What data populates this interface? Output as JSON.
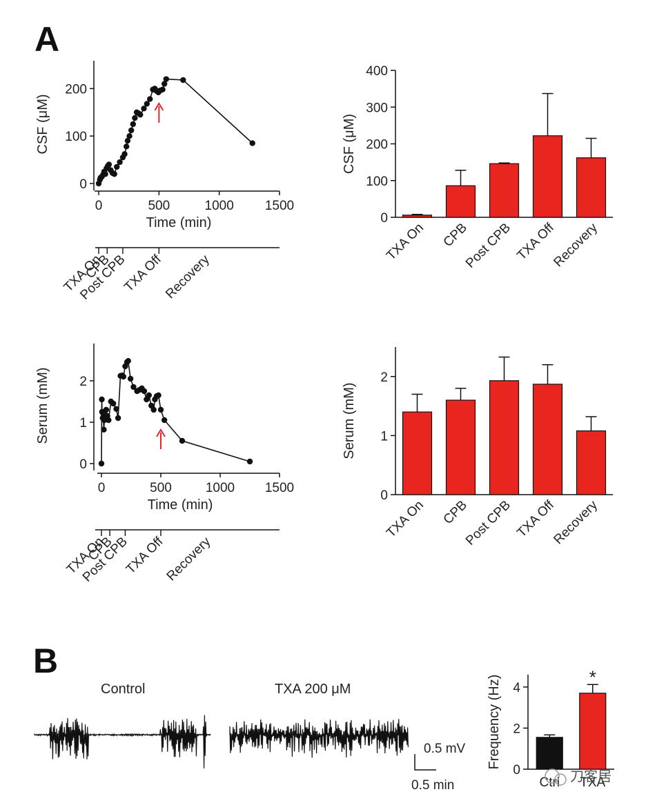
{
  "panel_labels": {
    "a": "A",
    "b": "B"
  },
  "colors": {
    "bar": "#e8251f",
    "bar_dark": "#111111",
    "arrow": "#e0282e",
    "line": "#111111"
  },
  "watermark": "刀客居",
  "chart_data": [
    {
      "id": "csf_time",
      "type": "line",
      "ylabel": "CSF (μM)",
      "xlabel": "Time (min)",
      "xlim": [
        0,
        1500
      ],
      "ylim": [
        0,
        250
      ],
      "xticks": [
        "0",
        "500",
        "1000",
        "1500"
      ],
      "yticks": [
        "0",
        "100",
        "200"
      ],
      "x": [
        0,
        10,
        15,
        25,
        35,
        45,
        55,
        65,
        75,
        85,
        100,
        115,
        130,
        150,
        175,
        200,
        215,
        230,
        240,
        255,
        270,
        285,
        300,
        315,
        330,
        345,
        375,
        400,
        425,
        450,
        465,
        480,
        495,
        510,
        530,
        545,
        560,
        700,
        1275
      ],
      "y": [
        0,
        8,
        12,
        14,
        18,
        25,
        20,
        32,
        37,
        40,
        28,
        22,
        20,
        35,
        45,
        55,
        62,
        78,
        90,
        100,
        112,
        125,
        138,
        150,
        148,
        145,
        158,
        168,
        178,
        198,
        200,
        195,
        192,
        196,
        198,
        210,
        220,
        218,
        85
      ],
      "arrow_x": 500,
      "phases": [
        "TXA On",
        "CPB",
        "Post CPB",
        "TXA Off",
        "Recovery"
      ],
      "phase_x": [
        0,
        70,
        200,
        500,
        900
      ]
    },
    {
      "id": "csf_bar",
      "type": "bar",
      "ylabel": "CSF (μM)",
      "ylim": [
        0,
        400
      ],
      "yticks": [
        "0",
        "100",
        "200",
        "300",
        "400"
      ],
      "categories": [
        "TXA On",
        "CPB",
        "Post CPB",
        "TXA Off",
        "Recovery"
      ],
      "values": [
        6,
        86,
        146,
        222,
        162
      ],
      "errors": [
        2,
        42,
        2,
        115,
        53
      ]
    },
    {
      "id": "serum_time",
      "type": "line",
      "ylabel": "Serum (mM)",
      "xlabel": "Time (min)",
      "xlim": [
        0,
        1500
      ],
      "ylim": [
        0,
        2.8
      ],
      "xticks": [
        "0",
        "500",
        "1000",
        "1500"
      ],
      "yticks": [
        "0",
        "1",
        "2"
      ],
      "x": [
        0,
        3,
        5,
        10,
        15,
        20,
        25,
        30,
        40,
        50,
        60,
        80,
        100,
        125,
        140,
        160,
        175,
        185,
        200,
        215,
        225,
        245,
        270,
        300,
        320,
        340,
        360,
        380,
        400,
        420,
        440,
        450,
        465,
        480,
        500,
        530,
        680,
        1250
      ],
      "y": [
        0,
        1.55,
        1.25,
        1.1,
        1.2,
        0.82,
        1.05,
        1.15,
        1.3,
        1.15,
        1.05,
        1.5,
        1.45,
        1.32,
        1.1,
        2.12,
        2.13,
        2.1,
        2.35,
        2.45,
        2.48,
        2.05,
        1.85,
        1.75,
        1.78,
        1.82,
        1.75,
        1.55,
        1.65,
        1.4,
        1.3,
        1.55,
        1.63,
        1.65,
        1.3,
        1.05,
        0.55,
        0.05
      ],
      "arrow_x": 500,
      "phases": [
        "TXA On",
        "CPB",
        "Post CPB",
        "TXA Off",
        "Recovery"
      ],
      "phase_x": [
        0,
        70,
        200,
        500,
        900
      ]
    },
    {
      "id": "serum_bar",
      "type": "bar",
      "ylabel": "Serum (mM)",
      "ylim": [
        0,
        2.5
      ],
      "yticks": [
        "0",
        "1",
        "2"
      ],
      "categories": [
        "TXA On",
        "CPB",
        "Post CPB",
        "TXA Off",
        "Recovery"
      ],
      "values": [
        1.4,
        1.6,
        1.93,
        1.87,
        1.08
      ],
      "errors": [
        0.3,
        0.2,
        0.4,
        0.33,
        0.24
      ]
    },
    {
      "id": "freq_bar",
      "type": "bar",
      "ylabel": "Frequency (Hz)",
      "ylim": [
        0,
        4.6
      ],
      "yticks": [
        "0",
        "2",
        "4"
      ],
      "categories": [
        "Ctrl",
        "TXA"
      ],
      "values": [
        1.55,
        3.7
      ],
      "errors": [
        0.12,
        0.42
      ],
      "significance": "*"
    }
  ],
  "traces": {
    "control_title": "Control",
    "txa_title": "TXA 200 μM",
    "scale_mv": "0.5 mV",
    "scale_min": "0.5 min"
  }
}
